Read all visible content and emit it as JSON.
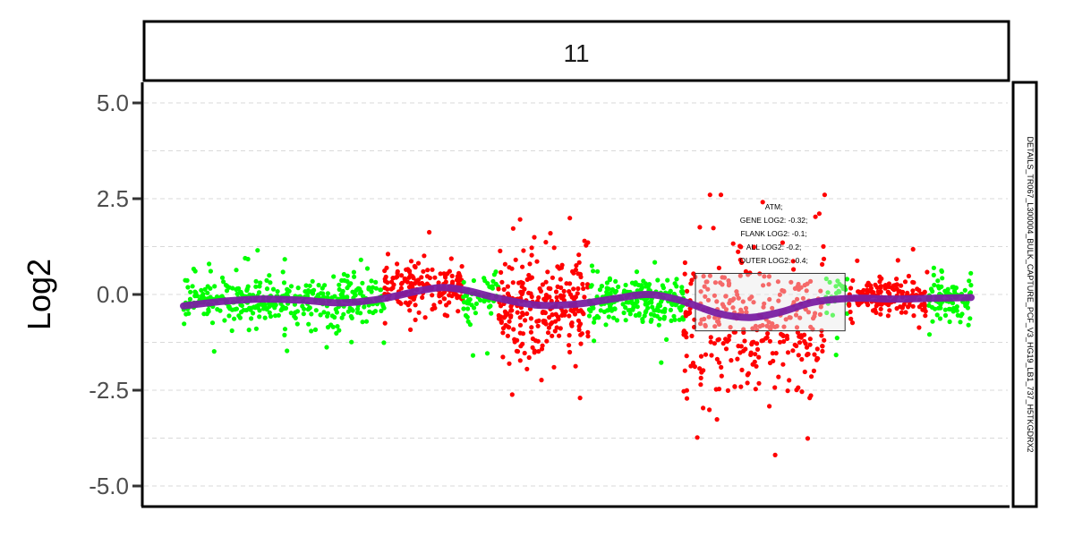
{
  "chart_data": {
    "type": "scatter",
    "facet_label": "11",
    "side_label": "DETAILS_TR067_L300004_BULK_CAPTURE_PCF_V3_HG19_LB1_737_H5TKGDRX2",
    "ylabel": "Log2",
    "xlabel": "",
    "ylim": [
      -5.5,
      5.0
    ],
    "yticks": [
      {
        "value": 5.0,
        "label": "5.0"
      },
      {
        "value": 2.5,
        "label": "2.5"
      },
      {
        "value": 0.0,
        "label": "0.0"
      },
      {
        "value": -2.5,
        "label": "-2.5"
      },
      {
        "value": -5.0,
        "label": "-5.0"
      }
    ],
    "grid": true,
    "colors": {
      "normal": "#00ff00",
      "altered": "#ff0000",
      "trend": "#7a1fa2",
      "highlight_fill": "#e8e8e8",
      "highlight_border": "#333333"
    },
    "series": [
      {
        "name": "green",
        "color": "#00ff00",
        "x_range": [
          0.0,
          0.255
        ],
        "center": -0.15,
        "spread": 0.55,
        "count": 380
      },
      {
        "name": "red",
        "color": "#ff0000",
        "x_range": [
          0.255,
          0.355
        ],
        "center": 0.2,
        "spread": 0.5,
        "count": 180
      },
      {
        "name": "green",
        "color": "#00ff00",
        "x_range": [
          0.355,
          0.4
        ],
        "center": -0.1,
        "spread": 0.5,
        "count": 60
      },
      {
        "name": "red",
        "color": "#ff0000",
        "x_range": [
          0.4,
          0.515
        ],
        "center": -0.3,
        "spread": 1.1,
        "count": 260
      },
      {
        "name": "green",
        "color": "#00ff00",
        "x_range": [
          0.515,
          0.635
        ],
        "center": -0.15,
        "spread": 0.55,
        "count": 220
      },
      {
        "name": "red",
        "color": "#ff0000",
        "x_range": [
          0.635,
          0.815
        ],
        "center": -0.8,
        "spread": 1.6,
        "count": 320
      },
      {
        "name": "green",
        "color": "#00ff00",
        "x_range": [
          0.815,
          0.845
        ],
        "center": -0.1,
        "spread": 0.5,
        "count": 30
      },
      {
        "name": "red",
        "color": "#ff0000",
        "x_range": [
          0.845,
          0.945
        ],
        "center": -0.1,
        "spread": 0.45,
        "count": 170
      },
      {
        "name": "green",
        "color": "#00ff00",
        "x_range": [
          0.945,
          1.0
        ],
        "center": -0.1,
        "spread": 0.55,
        "count": 90
      }
    ],
    "trend": [
      {
        "x": 0.0,
        "y": -0.3
      },
      {
        "x": 0.05,
        "y": -0.18
      },
      {
        "x": 0.1,
        "y": -0.12
      },
      {
        "x": 0.15,
        "y": -0.15
      },
      {
        "x": 0.2,
        "y": -0.22
      },
      {
        "x": 0.25,
        "y": -0.12
      },
      {
        "x": 0.3,
        "y": 0.1
      },
      {
        "x": 0.33,
        "y": 0.18
      },
      {
        "x": 0.36,
        "y": 0.1
      },
      {
        "x": 0.4,
        "y": -0.1
      },
      {
        "x": 0.45,
        "y": -0.28
      },
      {
        "x": 0.5,
        "y": -0.25
      },
      {
        "x": 0.55,
        "y": -0.1
      },
      {
        "x": 0.59,
        "y": 0.0
      },
      {
        "x": 0.63,
        "y": -0.15
      },
      {
        "x": 0.68,
        "y": -0.5
      },
      {
        "x": 0.72,
        "y": -0.6
      },
      {
        "x": 0.76,
        "y": -0.45
      },
      {
        "x": 0.8,
        "y": -0.2
      },
      {
        "x": 0.85,
        "y": -0.1
      },
      {
        "x": 0.9,
        "y": -0.12
      },
      {
        "x": 0.95,
        "y": -0.1
      },
      {
        "x": 1.0,
        "y": -0.08
      }
    ],
    "highlight": {
      "x_range": [
        0.65,
        0.84
      ],
      "y_range": [
        -0.95,
        0.55
      ],
      "annotations": [
        "ATM;",
        "GENE LOG2: -0.32;",
        "FLANK LOG2: -0.1;",
        "ALL LOG2: -0.2;",
        "OUTER LOG2: -0.4;"
      ]
    }
  }
}
